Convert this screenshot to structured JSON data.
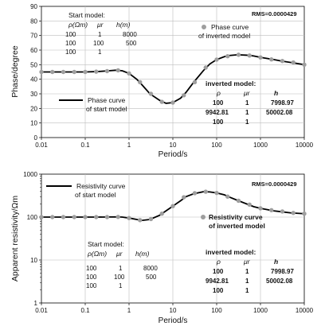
{
  "chart_data": [
    {
      "type": "line",
      "xlabel": "Period/s",
      "ylabel": "Phase/degree",
      "x_scale": "log",
      "xlim": [
        0.01,
        10000
      ],
      "ylim": [
        0,
        90
      ],
      "x_ticks": [
        "0.01",
        "0.1",
        "1",
        "10",
        "100",
        "1000",
        "10000"
      ],
      "y_ticks": [
        "0",
        "10",
        "20",
        "30",
        "40",
        "50",
        "60",
        "70",
        "80",
        "90"
      ],
      "grid": true,
      "rms": "RMS=0.0000429",
      "legend": [
        {
          "label_lines": [
            "Phase curve",
            "of start model"
          ],
          "marker": "line",
          "color": "#000000",
          "position": "left-middle"
        },
        {
          "label_lines": [
            "Phase curve",
            "of inverted model"
          ],
          "marker": "dot",
          "color": "#9e9e9e",
          "position": "top-middle"
        }
      ],
      "start_model": {
        "title": "Start model:",
        "headers": [
          "ρ(Ωm)",
          "μr",
          "h(m)"
        ],
        "rows": [
          [
            "100",
            "1",
            "8000"
          ],
          [
            "100",
            "100",
            "500"
          ],
          [
            "100",
            "1",
            ""
          ]
        ]
      },
      "inverted_model": {
        "title": "inverted model:",
        "headers": [
          "ρ",
          "μr",
          "h"
        ],
        "rows": [
          [
            "100",
            "1",
            "7998.97"
          ],
          [
            "9942.81",
            "1",
            "50002.08"
          ],
          [
            "100",
            "1",
            ""
          ]
        ]
      },
      "series": [
        {
          "name": "Phase curve of start model",
          "style": "line",
          "color": "#000000",
          "x": [
            0.01,
            0.02,
            0.05,
            0.1,
            0.2,
            0.3,
            0.5,
            0.7,
            1,
            1.5,
            2,
            3,
            5,
            7,
            10,
            15,
            20,
            30,
            50,
            70,
            100,
            150,
            200,
            300,
            500,
            700,
            1000,
            2000,
            3000,
            5000,
            10000
          ],
          "y": [
            45,
            45,
            45,
            45,
            45.3,
            45.7,
            46.2,
            45.8,
            44,
            40,
            36,
            30,
            25.5,
            23.5,
            24,
            27,
            31,
            38,
            46,
            50.5,
            53.5,
            55.5,
            56.3,
            56.8,
            56.5,
            56,
            55,
            53.5,
            52.5,
            51.5,
            50
          ]
        },
        {
          "name": "Phase curve of inverted model",
          "style": "markers",
          "color": "#9e9e9e",
          "x": [
            0.01,
            0.0178,
            0.0316,
            0.0562,
            0.1,
            0.178,
            0.316,
            0.562,
            1,
            1.78,
            3.16,
            5.62,
            10,
            17.8,
            31.6,
            56.2,
            100,
            178,
            316,
            562,
            1000,
            1780,
            3160,
            5620,
            10000
          ],
          "y": [
            45,
            45,
            45,
            45,
            45,
            45.2,
            45.6,
            46.1,
            44,
            38,
            30,
            24.5,
            24,
            29,
            38,
            48,
            53.5,
            55.8,
            56.8,
            56.3,
            55,
            53.6,
            52.5,
            51.5,
            50
          ]
        }
      ]
    },
    {
      "type": "line",
      "xlabel": "Period/s",
      "ylabel": "Apparent resistivity/Ωm",
      "x_scale": "log",
      "y_scale": "log",
      "xlim": [
        0.01,
        10000
      ],
      "ylim": [
        1,
        1000
      ],
      "x_ticks": [
        "0.01",
        "0.1",
        "1",
        "10",
        "100",
        "1000",
        "10000"
      ],
      "y_ticks": [
        "1",
        "10",
        "100",
        "1000"
      ],
      "grid": true,
      "rms": "RMS=0.0000429",
      "legend": [
        {
          "label_lines": [
            "Resistivity curve",
            "of start model"
          ],
          "marker": "line",
          "color": "#000000",
          "position": "top-left"
        },
        {
          "label_lines": [
            "Resistivity curve",
            "of inverted model"
          ],
          "marker": "dot",
          "color": "#9e9e9e",
          "position": "right-middle"
        }
      ],
      "start_model": {
        "title": "Start model:",
        "headers": [
          "ρ(Ωm)",
          "μr",
          "h(m)"
        ],
        "rows": [
          [
            "100",
            "1",
            "8000"
          ],
          [
            "100",
            "100",
            "500"
          ],
          [
            "100",
            "1",
            ""
          ]
        ]
      },
      "inverted_model": {
        "title": "inverted model:",
        "headers": [
          "ρ",
          "μr",
          "h"
        ],
        "rows": [
          [
            "100",
            "1",
            "7998.97"
          ],
          [
            "9942.81",
            "1",
            "50002.08"
          ],
          [
            "100",
            "1",
            ""
          ]
        ]
      },
      "series": [
        {
          "name": "Resistivity curve of start model",
          "style": "line",
          "color": "#000000",
          "x": [
            0.01,
            0.02,
            0.05,
            0.1,
            0.2,
            0.5,
            0.7,
            1,
            1.5,
            2,
            3,
            5,
            7,
            10,
            15,
            20,
            30,
            50,
            70,
            100,
            150,
            200,
            300,
            500,
            700,
            1000,
            2000,
            3000,
            5000,
            10000
          ],
          "y": [
            100,
            100,
            100,
            100,
            100,
            101,
            100,
            95,
            88,
            84,
            88,
            110,
            140,
            180,
            240,
            300,
            350,
            390,
            385,
            365,
            330,
            290,
            245,
            200,
            175,
            160,
            140,
            133,
            125,
            120
          ]
        },
        {
          "name": "Resistivity curve of inverted model",
          "style": "markers",
          "color": "#9e9e9e",
          "x": [
            0.01,
            0.0178,
            0.0316,
            0.0562,
            0.1,
            0.178,
            0.316,
            0.562,
            1,
            1.78,
            3.16,
            5.62,
            10,
            17.8,
            31.6,
            56.2,
            100,
            178,
            316,
            562,
            1000,
            1780,
            3160,
            5620,
            10000
          ],
          "y": [
            100,
            100,
            100,
            100,
            100,
            100,
            100,
            101,
            95,
            85,
            90,
            120,
            180,
            290,
            360,
            390,
            365,
            300,
            240,
            195,
            160,
            145,
            135,
            125,
            120
          ]
        }
      ]
    }
  ]
}
